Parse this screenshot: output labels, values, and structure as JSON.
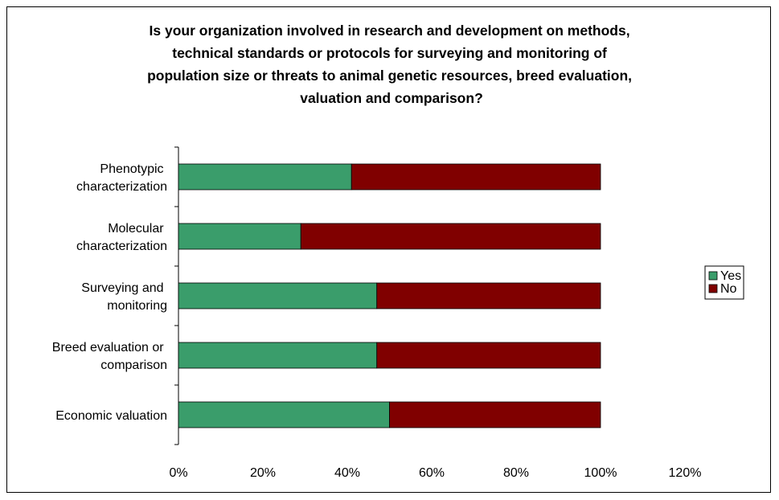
{
  "chart_data": {
    "type": "bar",
    "orientation": "horizontal",
    "stacked": true,
    "title": "Is your organization involved in research and development on methods,\ntechnical standards or protocols for surveying and monitoring of\npopulation size or threats to animal genetic resources, breed evaluation,\nvaluation and comparison?",
    "categories": [
      "Phenotypic\ncharacterization",
      "Molecular\ncharacterization",
      "Surveying and\nmonitoring",
      "Breed evaluation or\ncomparison",
      "Economic valuation"
    ],
    "series": [
      {
        "name": "Yes",
        "color": "#3a9d6b",
        "values": [
          41,
          29,
          47,
          47,
          50
        ]
      },
      {
        "name": "No",
        "color": "#800000",
        "values": [
          59,
          71,
          53,
          53,
          50
        ]
      }
    ],
    "xlim": [
      0,
      120
    ],
    "xticks": [
      {
        "value": 0,
        "label": "0%"
      },
      {
        "value": 20,
        "label": "20%"
      },
      {
        "value": 40,
        "label": "40%"
      },
      {
        "value": 60,
        "label": "60%"
      },
      {
        "value": 80,
        "label": "80%"
      },
      {
        "value": 100,
        "label": "100%"
      },
      {
        "value": 120,
        "label": "120%"
      }
    ],
    "grid": false,
    "legend": "right"
  }
}
